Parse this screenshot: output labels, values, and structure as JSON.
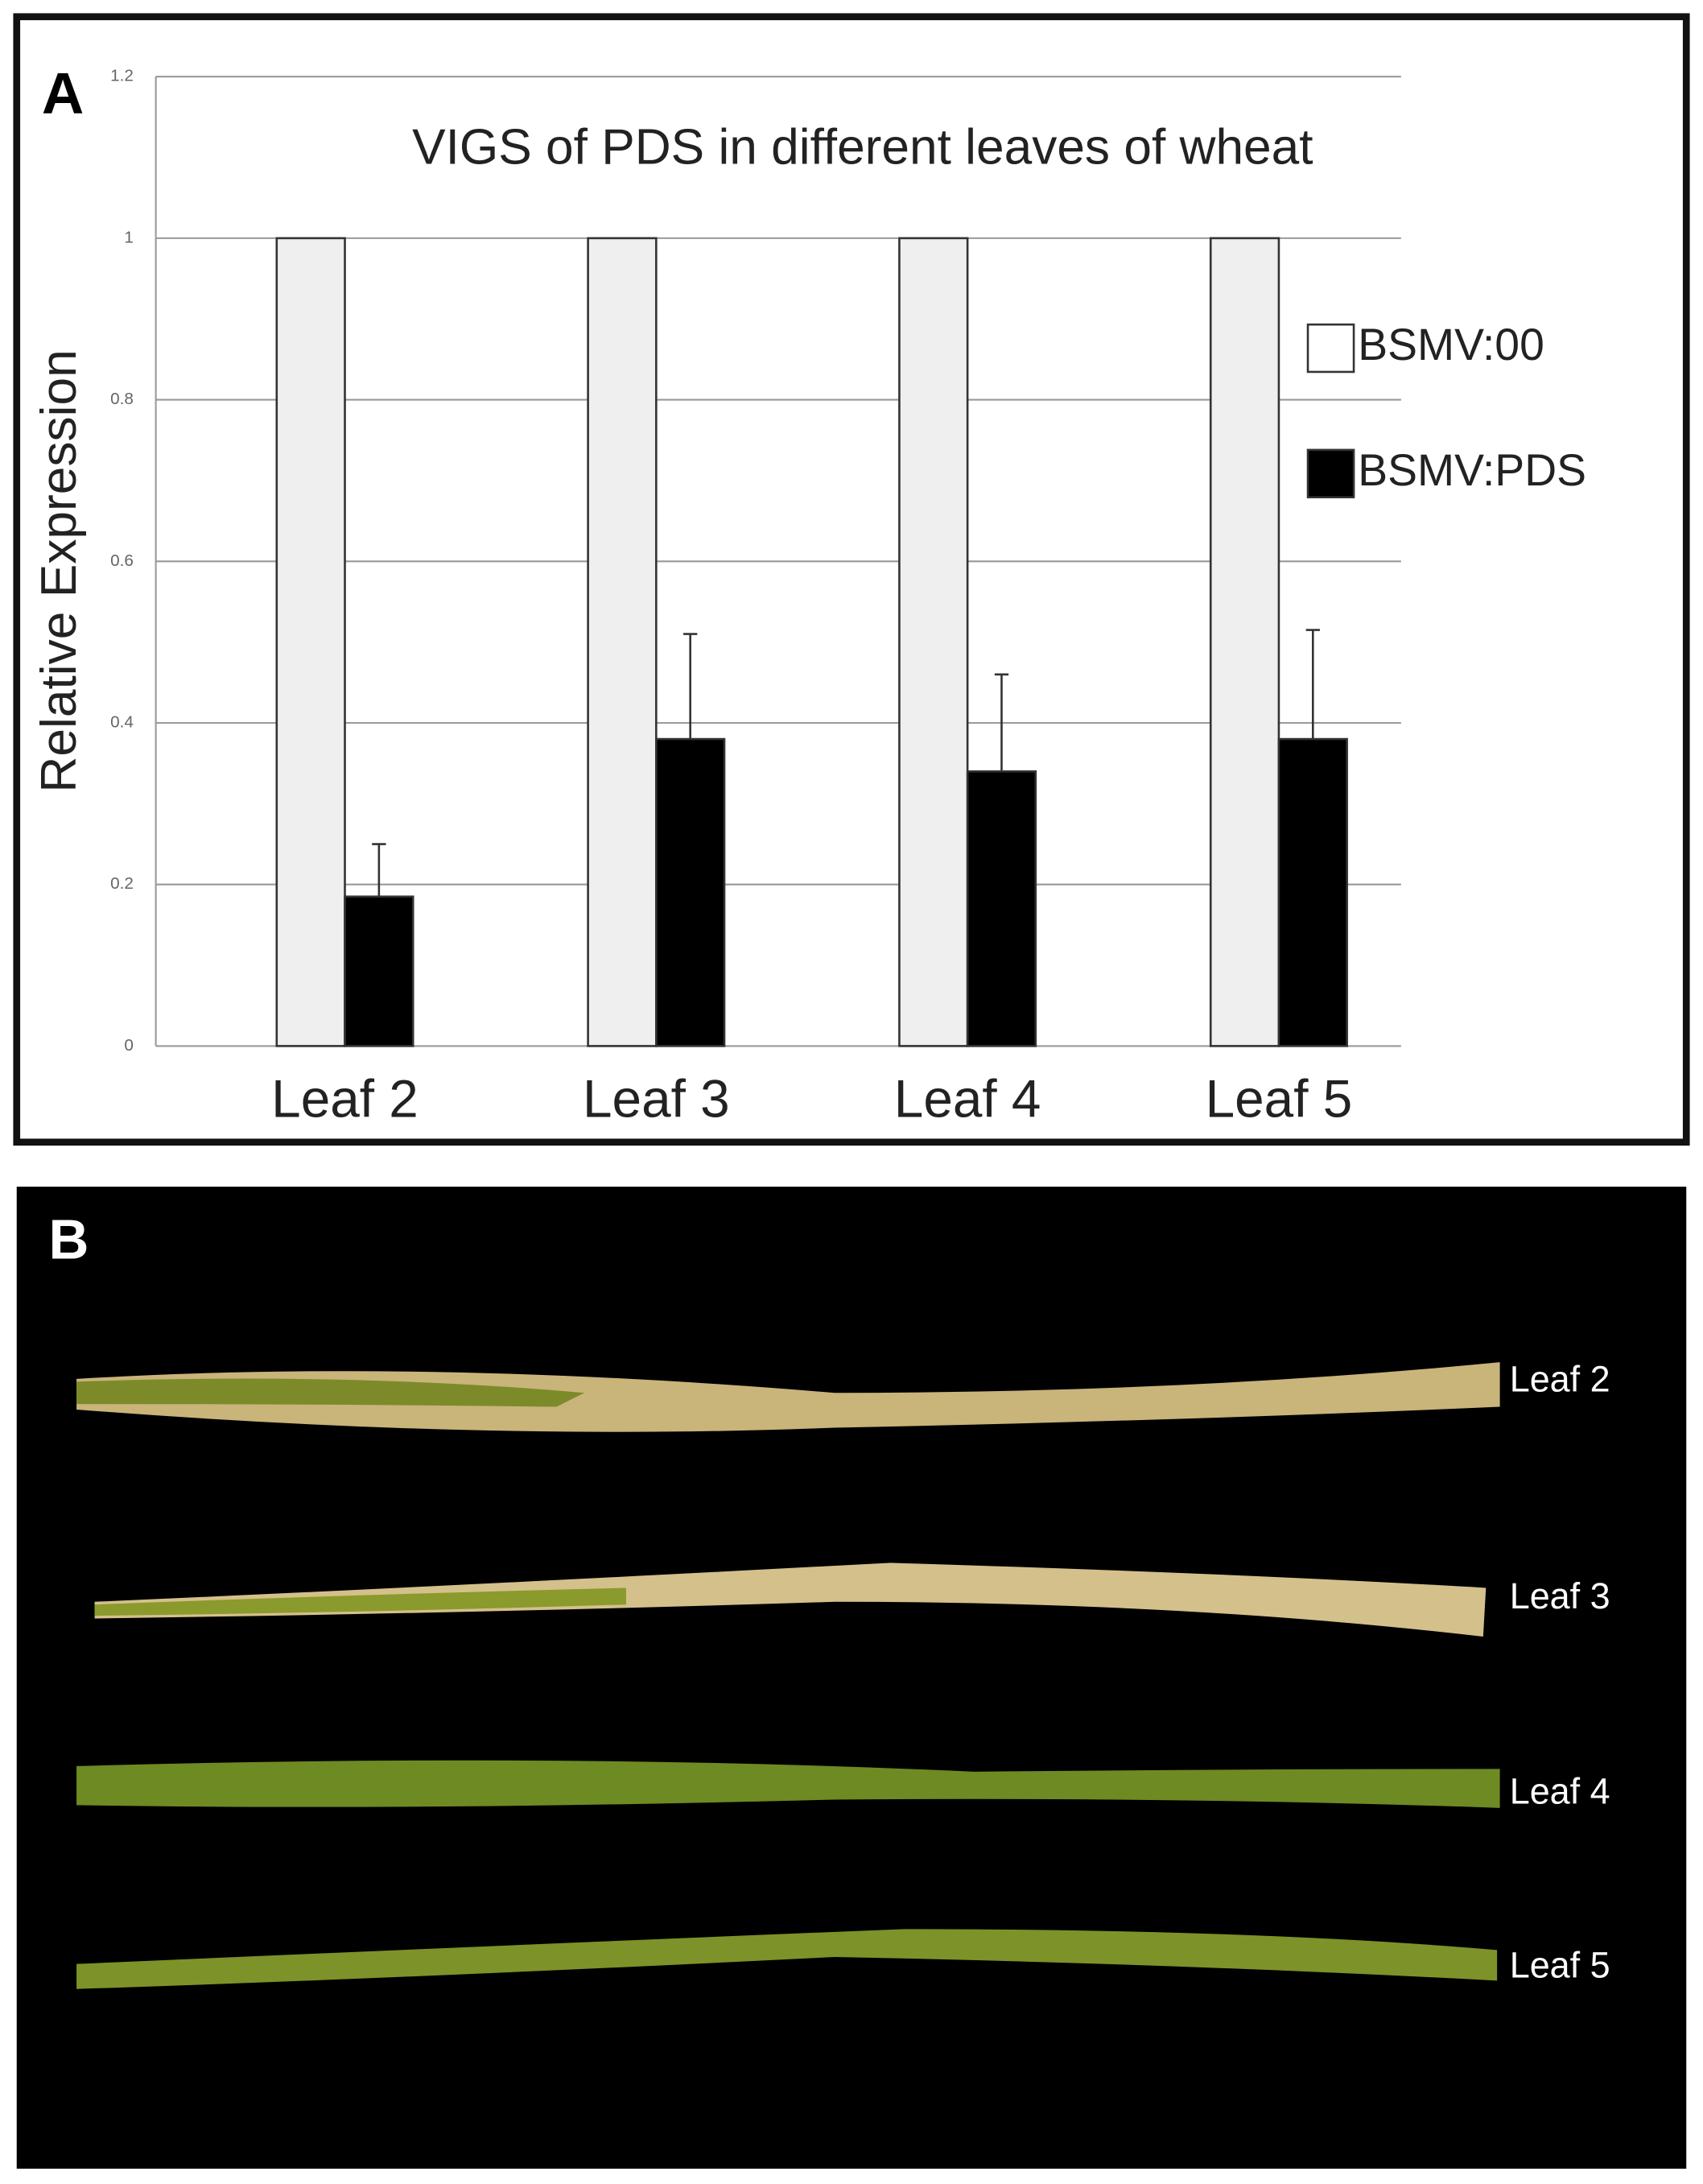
{
  "chart_data": {
    "type": "bar",
    "title": "VIGS of PDS in different leaves of wheat",
    "y_label": "Relative Expression",
    "categories": [
      "Leaf 2",
      "Leaf 3",
      "Leaf 4",
      "Leaf 5"
    ],
    "series": [
      {
        "name": "BSMV:00",
        "color": "#efefef",
        "values": [
          1,
          1,
          1,
          1
        ]
      },
      {
        "name": "BSMV:PDS",
        "color": "#000000",
        "values": [
          0.185,
          0.38,
          0.34,
          0.38
        ],
        "errors": [
          0.065,
          0.13,
          0.12,
          0.135
        ]
      }
    ],
    "ylim": [
      0,
      1.2
    ],
    "yticks": [
      0,
      0.2,
      0.4,
      0.6,
      0.8,
      1,
      1.2
    ],
    "grid": true,
    "legend": "right"
  },
  "panels": {
    "a_label": "A",
    "b_label": "B",
    "photo_labels": [
      "Leaf 2",
      "Leaf 3",
      "Leaf 4",
      "Leaf 5"
    ]
  }
}
